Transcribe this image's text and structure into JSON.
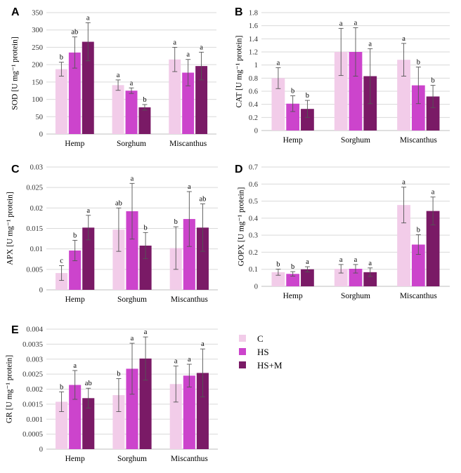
{
  "legend": {
    "items": [
      {
        "label": "C",
        "color": "#f2cce9"
      },
      {
        "label": "HS",
        "color": "#cc44cc"
      },
      {
        "label": "HS+M",
        "color": "#7a1a66"
      }
    ]
  },
  "chart_data": [
    {
      "panel": "A",
      "type": "bar",
      "ylabel": "SOD [U mg⁻¹ protein]",
      "categories": [
        "Hemp",
        "Sorghum",
        "Miscanthus"
      ],
      "ylim": [
        0,
        350
      ],
      "yticks": [
        0,
        50,
        100,
        150,
        200,
        250,
        300,
        350
      ],
      "ytick_labels": [
        "0",
        "50",
        "100",
        "150",
        "200",
        "250",
        "300",
        "350"
      ],
      "series": [
        {
          "name": "C",
          "values": [
            187,
            141,
            215
          ],
          "errors": [
            20,
            15,
            35
          ],
          "letters": [
            "b",
            "a",
            "a"
          ]
        },
        {
          "name": "HS",
          "values": [
            235,
            125,
            177
          ],
          "errors": [
            45,
            8,
            38
          ],
          "letters": [
            "ab",
            "a",
            "a"
          ]
        },
        {
          "name": "HS+M",
          "values": [
            266,
            77,
            196
          ],
          "errors": [
            55,
            8,
            40
          ],
          "letters": [
            "a",
            "b",
            "a"
          ]
        }
      ]
    },
    {
      "panel": "B",
      "type": "bar",
      "ylabel": "CAT [U mg⁻¹ protein]",
      "categories": [
        "Hemp",
        "Sorghum",
        "Miscanthus"
      ],
      "ylim": [
        0,
        1.8
      ],
      "yticks": [
        0,
        0.2,
        0.4,
        0.6,
        0.8,
        1,
        1.2,
        1.4,
        1.6,
        1.8
      ],
      "ytick_labels": [
        "0",
        "0.2",
        "0.4",
        "0.6",
        "0.8",
        "1",
        "1.2",
        "1.4",
        "1.6",
        "1.8"
      ],
      "series": [
        {
          "name": "C",
          "values": [
            0.8,
            1.2,
            1.08
          ],
          "errors": [
            0.16,
            0.36,
            0.25
          ],
          "letters": [
            "a",
            "a",
            "a"
          ]
        },
        {
          "name": "HS",
          "values": [
            0.41,
            1.2,
            0.69
          ],
          "errors": [
            0.12,
            0.37,
            0.28
          ],
          "letters": [
            "b",
            "a",
            "b"
          ]
        },
        {
          "name": "HS+M",
          "values": [
            0.33,
            0.83,
            0.52
          ],
          "errors": [
            0.13,
            0.42,
            0.17
          ],
          "letters": [
            "b",
            "a",
            "b"
          ]
        }
      ]
    },
    {
      "panel": "C",
      "type": "bar",
      "ylabel": "APX [U mg⁻¹ protein]",
      "categories": [
        "Hemp",
        "Sorghum",
        "Miscanthus"
      ],
      "ylim": [
        0,
        0.03
      ],
      "yticks": [
        0,
        0.005,
        0.01,
        0.015,
        0.02,
        0.025,
        0.03
      ],
      "ytick_labels": [
        "0",
        "0.005",
        "0.01",
        "0.015",
        "0.02",
        "0.025",
        "0.03"
      ],
      "series": [
        {
          "name": "C",
          "values": [
            0.0041,
            0.0147,
            0.0102
          ],
          "errors": [
            0.0018,
            0.0053,
            0.0052
          ],
          "letters": [
            "c",
            "ab",
            "b"
          ]
        },
        {
          "name": "HS",
          "values": [
            0.0096,
            0.0192,
            0.0173
          ],
          "errors": [
            0.0025,
            0.0068,
            0.0067
          ],
          "letters": [
            "b",
            "a",
            "a"
          ]
        },
        {
          "name": "HS+M",
          "values": [
            0.0152,
            0.0108,
            0.0152
          ],
          "errors": [
            0.003,
            0.0032,
            0.0058
          ],
          "letters": [
            "a",
            "b",
            "ab"
          ]
        }
      ]
    },
    {
      "panel": "D",
      "type": "bar",
      "ylabel": "GOPX [U mg⁻¹ protein]",
      "categories": [
        "Hemp",
        "Sorghum",
        "Miscanthus"
      ],
      "ylim": [
        0,
        0.7
      ],
      "yticks": [
        0,
        0.1,
        0.2,
        0.3,
        0.4,
        0.5,
        0.6,
        0.7
      ],
      "ytick_labels": [
        "0",
        "0.1",
        "0.2",
        "0.3",
        "0.4",
        "0.5",
        "0.6",
        "0.7"
      ],
      "series": [
        {
          "name": "C",
          "values": [
            0.083,
            0.103,
            0.477
          ],
          "errors": [
            0.018,
            0.025,
            0.105
          ],
          "letters": [
            "b",
            "a",
            "a"
          ]
        },
        {
          "name": "HS",
          "values": [
            0.073,
            0.103,
            0.245
          ],
          "errors": [
            0.013,
            0.025,
            0.058
          ],
          "letters": [
            "b",
            "a",
            "b"
          ]
        },
        {
          "name": "HS+M",
          "values": [
            0.1,
            0.083,
            0.442
          ],
          "errors": [
            0.015,
            0.025,
            0.082
          ],
          "letters": [
            "a",
            "a",
            "a"
          ]
        }
      ]
    },
    {
      "panel": "E",
      "type": "bar",
      "ylabel": "GR [U mg⁻¹ protein]",
      "categories": [
        "Hemp",
        "Sorghum",
        "Miscanthus"
      ],
      "ylim": [
        0,
        0.004
      ],
      "yticks": [
        0,
        0.0005,
        0.001,
        0.0015,
        0.002,
        0.0025,
        0.003,
        0.0035,
        0.004
      ],
      "ytick_labels": [
        "0",
        "0.0005",
        "0.001",
        "0.0015",
        "0.002",
        "0.0025",
        "0.003",
        "0.0035",
        "0.004"
      ],
      "series": [
        {
          "name": "C",
          "values": [
            0.00158,
            0.0018,
            0.00217
          ],
          "errors": [
            0.00033,
            0.00055,
            0.0006
          ],
          "letters": [
            "b",
            "b",
            "a"
          ]
        },
        {
          "name": "HS",
          "values": [
            0.00214,
            0.00268,
            0.00245
          ],
          "errors": [
            0.00048,
            0.00085,
            0.00038
          ],
          "letters": [
            "a",
            "a",
            "a"
          ]
        },
        {
          "name": "HS+M",
          "values": [
            0.0017,
            0.00302,
            0.00254
          ],
          "errors": [
            0.00033,
            0.00072,
            0.0008
          ],
          "letters": [
            "ab",
            "a",
            "a"
          ]
        }
      ]
    }
  ]
}
